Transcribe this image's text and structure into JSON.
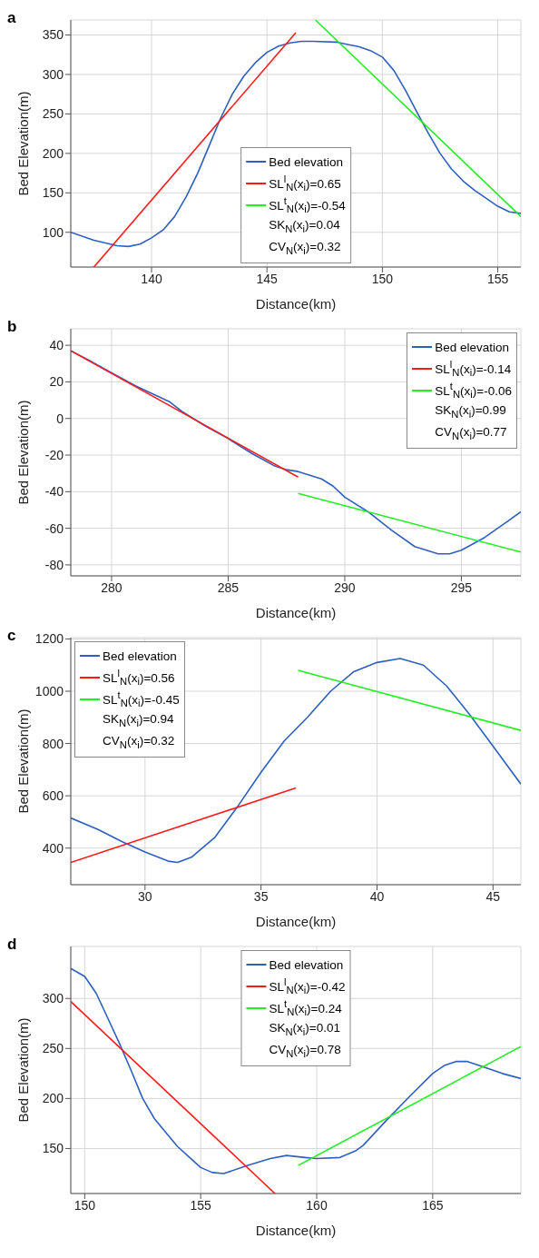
{
  "chart_data": [
    {
      "type": "line",
      "title": "a",
      "xlabel": "Distance(km)",
      "ylabel": "Bed Elevation(m)",
      "xlim": [
        136.5,
        156
      ],
      "ylim": [
        56,
        369
      ],
      "xticks": [
        140,
        145,
        150,
        155
      ],
      "yticks": [
        100,
        150,
        200,
        250,
        300,
        350
      ],
      "grid": true,
      "legend": "bottom",
      "annotations": [
        "SK$_{N}$(x$_{i}$)=0.04",
        "CV$_{N}$(x$_{i}$)=0.32"
      ],
      "series": [
        {
          "name": "Bed elevation",
          "color": "#2e5fbf",
          "x": [
            136.5,
            137.5,
            138.5,
            139,
            139.5,
            140,
            140.5,
            141,
            141.5,
            142,
            142.5,
            143,
            143.5,
            144,
            144.5,
            145,
            145.5,
            146,
            146.5,
            147,
            148,
            148.5,
            149,
            149.5,
            150,
            150.5,
            151,
            151.5,
            152,
            152.5,
            153,
            153.5,
            154,
            154.5,
            155,
            155.5,
            156
          ],
          "values": [
            100,
            90,
            83,
            82,
            85,
            93,
            103,
            120,
            145,
            175,
            210,
            245,
            275,
            298,
            315,
            328,
            336,
            340,
            342,
            342,
            341,
            338,
            335,
            330,
            322,
            305,
            280,
            252,
            225,
            200,
            180,
            165,
            153,
            143,
            133,
            126,
            124
          ]
        },
        {
          "name": "SL$^{l}$$_{N}$(x$_{i}$)=0.65",
          "color": "#ff1a1a",
          "x": [
            137.5,
            146.25
          ],
          "values": [
            56,
            353
          ]
        },
        {
          "name": "SL$^{t}$$_{N}$(x$_{i}$)=-0.54",
          "color": "#22ee22",
          "x": [
            147.1,
            156
          ],
          "values": [
            369,
            120
          ]
        }
      ]
    },
    {
      "type": "line",
      "title": "b",
      "xlabel": "Distance(km)",
      "ylabel": "Bed Elevation(m)",
      "xlim": [
        278.25,
        297.55
      ],
      "ylim": [
        -86,
        49
      ],
      "xticks": [
        280,
        285,
        290,
        295
      ],
      "yticks": [
        -80,
        -60,
        -40,
        -20,
        0,
        20,
        40
      ],
      "grid": true,
      "legend": "top right",
      "annotations": [
        "SK$_{N}$(x$_{i}$)=0.99",
        "CV$_{N}$(x$_{i}$)=0.77"
      ],
      "series": [
        {
          "name": "Bed elevation",
          "color": "#2e5fbf",
          "x": [
            278.25,
            279,
            280,
            281,
            282,
            282.5,
            283,
            284,
            285,
            286,
            287,
            287.5,
            288,
            289,
            289.5,
            290,
            291,
            292,
            293,
            294,
            294.5,
            295,
            296,
            297,
            297.55
          ],
          "values": [
            37,
            32,
            25,
            18,
            12,
            9,
            4,
            -4,
            -11,
            -19,
            -26,
            -28,
            -29,
            -33,
            -37,
            -43,
            -51,
            -61,
            -70,
            -74,
            -74,
            -72,
            -65,
            -56,
            -51
          ]
        },
        {
          "name": "SL$^{l}$$_{N}$(x$_{i}$)=-0.14",
          "color": "#ff1a1a",
          "x": [
            278.25,
            288
          ],
          "values": [
            37,
            -32
          ]
        },
        {
          "name": "SL$^{t}$$_{N}$(x$_{i}$)=-0.06",
          "color": "#22ee22",
          "x": [
            288,
            297.55
          ],
          "values": [
            -41,
            -73
          ]
        }
      ]
    },
    {
      "type": "line",
      "title": "c",
      "xlabel": "Distance(km)",
      "ylabel": "Bed Elevation(m)",
      "xlim": [
        26.8,
        46.2
      ],
      "ylim": [
        260,
        1205
      ],
      "xticks": [
        30,
        35,
        40,
        45
      ],
      "yticks": [
        400,
        600,
        800,
        1000,
        1200
      ],
      "grid": true,
      "legend": "top left",
      "annotations": [
        "SK$_{N}$(x$_{i}$)=0.94",
        "CV$_{N}$(x$_{i}$)=0.32"
      ],
      "series": [
        {
          "name": "Bed elevation",
          "color": "#2e5fbf",
          "x": [
            26.8,
            28,
            29,
            30,
            31,
            31.4,
            32,
            33,
            34,
            35,
            36,
            37,
            38,
            39,
            40,
            41,
            42,
            43,
            44,
            45,
            46.2
          ],
          "values": [
            515,
            470,
            425,
            385,
            350,
            345,
            365,
            440,
            560,
            690,
            810,
            900,
            1000,
            1075,
            1110,
            1125,
            1100,
            1020,
            910,
            790,
            645
          ]
        },
        {
          "name": "SL$^{l}$$_{N}$(x$_{i}$)=0.56",
          "color": "#ff1a1a",
          "x": [
            26.8,
            36.5
          ],
          "values": [
            345,
            630
          ]
        },
        {
          "name": "SL$^{t}$$_{N}$(x$_{i}$)=-0.45",
          "color": "#22ee22",
          "x": [
            36.6,
            46.2
          ],
          "values": [
            1080,
            850
          ]
        }
      ]
    },
    {
      "type": "line",
      "title": "d",
      "xlabel": "Distance(km)",
      "ylabel": "Bed Elevation(m)",
      "xlim": [
        149.4,
        168.8
      ],
      "ylim": [
        105,
        352
      ],
      "xticks": [
        150,
        155,
        160,
        165
      ],
      "yticks": [
        150,
        200,
        250,
        300
      ],
      "grid": true,
      "legend": "top",
      "annotations": [
        "SK$_{N}$(x$_{i}$)=0.01",
        "CV$_{N}$(x$_{i}$)=0.78"
      ],
      "series": [
        {
          "name": "Bed elevation",
          "color": "#2e5fbf",
          "x": [
            149.4,
            150,
            150.5,
            151,
            151.5,
            152,
            152.5,
            153,
            154,
            155,
            155.5,
            156,
            157,
            158,
            158.7,
            159.5,
            160,
            161,
            161.7,
            162,
            163,
            164,
            165,
            165.5,
            166,
            166.5,
            167,
            168,
            168.8
          ],
          "values": [
            330,
            322,
            305,
            280,
            255,
            228,
            200,
            180,
            152,
            131,
            126,
            125,
            133,
            140,
            143,
            141,
            140,
            141,
            148,
            153,
            178,
            202,
            225,
            233,
            237,
            237,
            233,
            225,
            220
          ]
        },
        {
          "name": "SL$^{l}$$_{N}$(x$_{i}$)=-0.42",
          "color": "#ff1a1a",
          "x": [
            149.4,
            158.2
          ],
          "values": [
            297,
            105
          ]
        },
        {
          "name": "SL$^{t}$$_{N}$(x$_{i}$)=0.24",
          "color": "#22ee22",
          "x": [
            159.2,
            168.8
          ],
          "values": [
            133,
            252
          ]
        }
      ]
    }
  ]
}
